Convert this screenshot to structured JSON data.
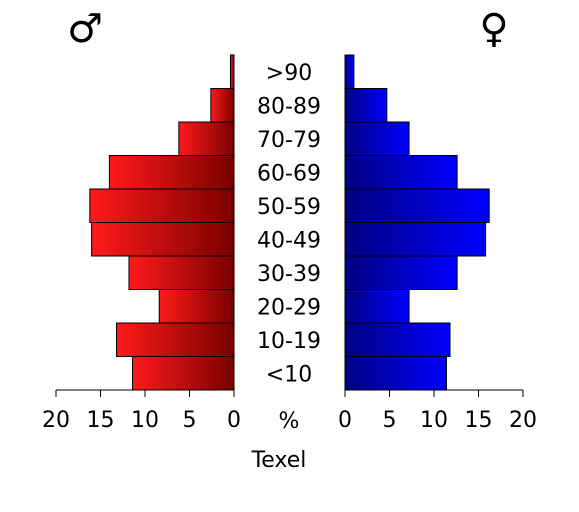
{
  "chart_data": {
    "type": "bar",
    "orientation": "horizontal",
    "layout": "population-pyramid",
    "categories": [
      "<10",
      "10-19",
      "20-29",
      "30-39",
      "40-49",
      "50-59",
      "60-69",
      "70-79",
      "80-89",
      ">90"
    ],
    "series": [
      {
        "side": "left",
        "symbol": "♂",
        "color_light": "#ff1a1a",
        "color_dark": "#7a0000",
        "values": [
          11.4,
          13.2,
          8.4,
          11.8,
          16.0,
          16.2,
          14.0,
          6.2,
          2.6,
          0.4
        ]
      },
      {
        "side": "right",
        "symbol": "♀",
        "color_light": "#0000ff",
        "color_dark": "#000080",
        "values": [
          11.4,
          11.8,
          7.2,
          12.6,
          15.8,
          16.2,
          12.6,
          7.2,
          4.7,
          1.0
        ]
      }
    ],
    "axis_ticks": [
      0,
      5,
      10,
      15,
      20
    ],
    "unit_label": "%",
    "xlim": [
      0,
      20
    ],
    "caption": "Texel"
  }
}
